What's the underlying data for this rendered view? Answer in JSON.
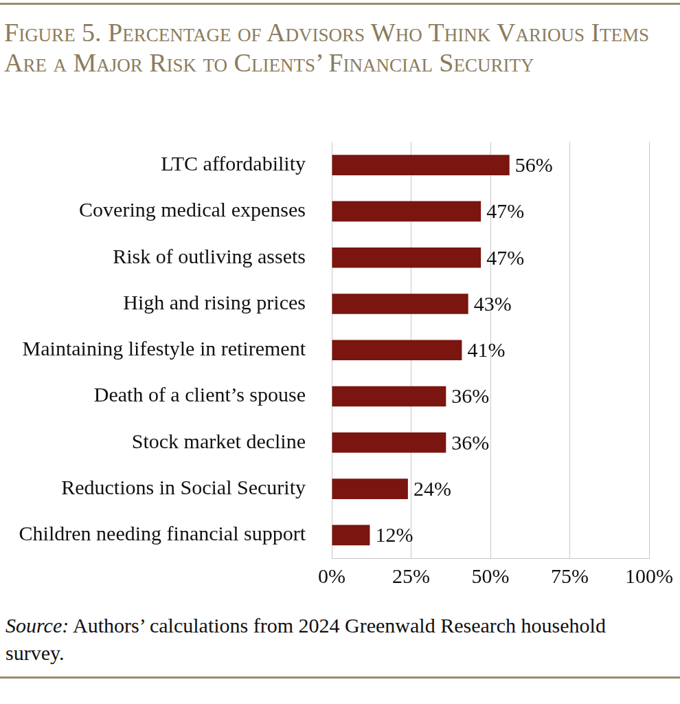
{
  "chart_data": {
    "type": "bar",
    "orientation": "horizontal",
    "title": "Figure 5. Percentage of Advisors Who Think Various Items Are a Major Risk to Clients’ Financial Security",
    "categories": [
      "LTC affordability",
      "Covering medical expenses",
      "Risk of outliving assets",
      "High and rising prices",
      "Maintaining lifestyle in retirement",
      "Death of a client’s spouse",
      "Stock market decline",
      "Reductions in Social Security",
      "Children needing financial support"
    ],
    "values": [
      56,
      47,
      47,
      43,
      41,
      36,
      36,
      24,
      12
    ],
    "value_labels": [
      "56%",
      "47%",
      "47%",
      "43%",
      "41%",
      "36%",
      "36%",
      "24%",
      "12%"
    ],
    "data_labels": true,
    "color": "#7a1510",
    "xlim": [
      0,
      100
    ],
    "xticks": [
      {
        "value": 0,
        "label": "0%"
      },
      {
        "value": 25,
        "label": "25%"
      },
      {
        "value": 50,
        "label": "50%"
      },
      {
        "value": 75,
        "label": "75%"
      },
      {
        "value": 100,
        "label": "100%"
      }
    ],
    "grid": true,
    "note": "Source: Authors’ calculations from 2024 Greenwald Research household survey."
  }
}
